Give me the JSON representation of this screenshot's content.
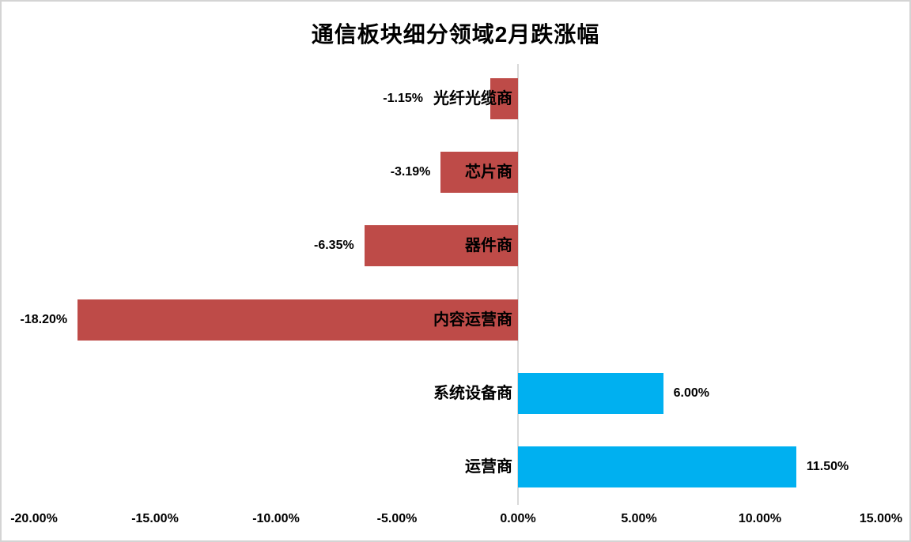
{
  "chart_data": {
    "type": "bar",
    "orientation": "horizontal",
    "title": "通信板块细分领域2月跌涨幅",
    "categories": [
      "光纤光缆商",
      "芯片商",
      "器件商",
      "内容运营商",
      "系统设备商",
      "运营商"
    ],
    "values": [
      -1.15,
      -3.19,
      -6.35,
      -18.2,
      6.0,
      11.5
    ],
    "value_labels": [
      "-1.15%",
      "-3.19%",
      "-6.35%",
      "-18.20%",
      "6.00%",
      "11.50%"
    ],
    "x_tick_labels": [
      "-20.00%",
      "-15.00%",
      "-10.00%",
      "-5.00%",
      "0.00%",
      "5.00%",
      "10.00%",
      "15.00%"
    ],
    "x_tick_values": [
      -20,
      -15,
      -10,
      -5,
      0,
      5,
      10,
      15
    ],
    "xlim": [
      -21.3,
      16.3
    ],
    "grid": false,
    "legend": "none",
    "colors": {
      "negative_bar": "#be4b48",
      "positive_bar": "#00b0f0",
      "axis_line": "#d9d9d9",
      "text": "#000000",
      "background": "#ffffff",
      "border": "#d4d4d4"
    }
  }
}
